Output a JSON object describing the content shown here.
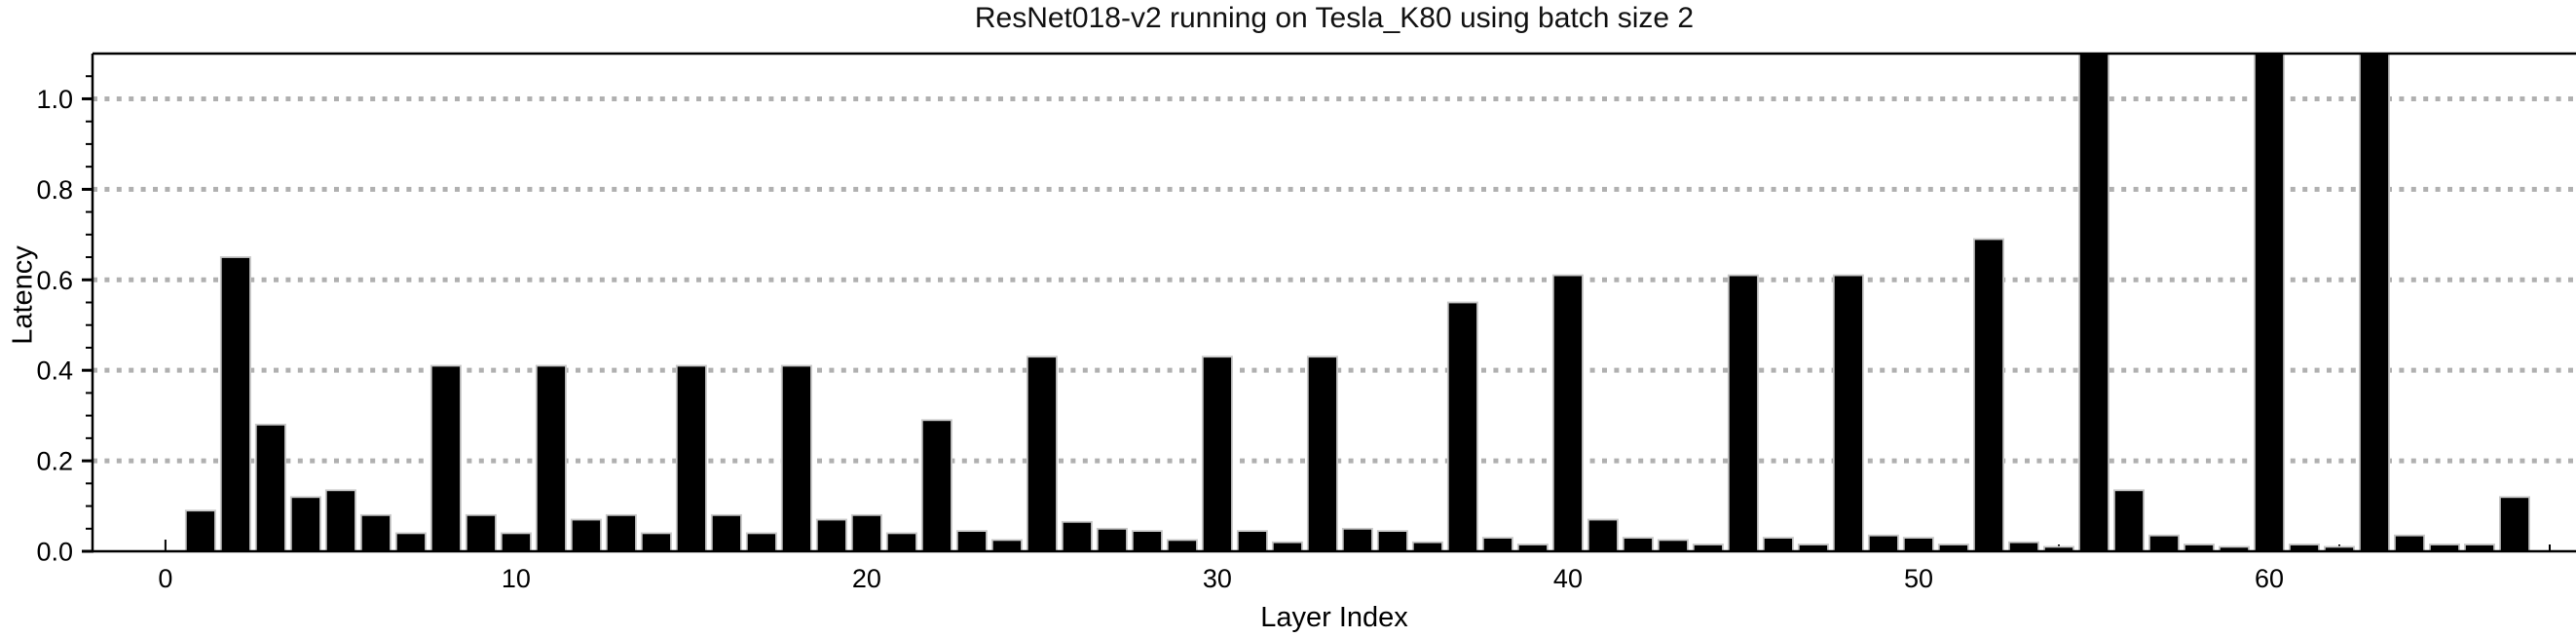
{
  "figure": {
    "title": "ResNet018-v2 running on Tesla_K80 using batch size 2",
    "y_axis_label": "Latency",
    "x_axis_label": "Layer Index"
  },
  "chart_data": {
    "type": "bar",
    "title": "ResNet018-v2 running on Tesla_K80 using batch size 2",
    "xlabel": "Layer Index",
    "ylabel": "Latency",
    "x": [
      1,
      2,
      3,
      4,
      5,
      6,
      7,
      8,
      9,
      10,
      11,
      12,
      13,
      14,
      15,
      16,
      17,
      18,
      19,
      20,
      21,
      22,
      23,
      24,
      25,
      26,
      27,
      28,
      29,
      30,
      31,
      32,
      33,
      34,
      35,
      36,
      37,
      38,
      39,
      40,
      41,
      42,
      43,
      44,
      45,
      46,
      47,
      48,
      49,
      50,
      51,
      52,
      53,
      54,
      55,
      56,
      57,
      58,
      59,
      60,
      61,
      62,
      63,
      64,
      65,
      66,
      67
    ],
    "values": [
      0.09,
      0.65,
      0.28,
      0.12,
      0.135,
      0.08,
      0.04,
      0.41,
      0.08,
      0.04,
      0.41,
      0.07,
      0.08,
      0.04,
      0.41,
      0.08,
      0.04,
      0.41,
      0.07,
      0.08,
      0.04,
      0.29,
      0.045,
      0.025,
      0.43,
      0.065,
      0.05,
      0.045,
      0.025,
      0.43,
      0.045,
      0.02,
      0.43,
      0.05,
      0.045,
      0.02,
      0.55,
      0.03,
      0.015,
      0.61,
      0.07,
      0.03,
      0.025,
      0.015,
      0.61,
      0.03,
      0.015,
      0.61,
      0.035,
      0.03,
      0.015,
      0.69,
      0.02,
      0.01,
      1.15,
      0.135,
      0.035,
      0.015,
      0.01,
      1.15,
      0.015,
      0.01,
      1.15,
      0.035,
      0.015,
      0.015,
      0.12
    ],
    "clipped_bars_exceed_ymax": [
      55,
      60,
      63
    ],
    "bar_width_units": 0.84,
    "xlim": [
      -2.08,
      68.75
    ],
    "ylim": [
      0,
      1.1
    ],
    "yticks": [
      0.0,
      0.2,
      0.4,
      0.6,
      0.8,
      1.0
    ],
    "ytick_labels": [
      "0.0",
      "0.2",
      "0.4",
      "0.6",
      "0.8",
      "1.0"
    ],
    "y_minor_tick_step": 0.05,
    "xticks": [
      0,
      10,
      20,
      30,
      40,
      50,
      60
    ],
    "xtick_labels": [
      "0",
      "10",
      "20",
      "30",
      "40",
      "50",
      "60"
    ],
    "x_minor_tick_step": 2,
    "grid": "horizontal dotted lines at major y ticks",
    "legend": null,
    "colors": {
      "bar_fill": "#000000",
      "bar_edge": "#c8c8c8",
      "grid": "#b0b0b0",
      "axis": "#000000",
      "text": "#000000",
      "background": "#ffffff"
    }
  }
}
